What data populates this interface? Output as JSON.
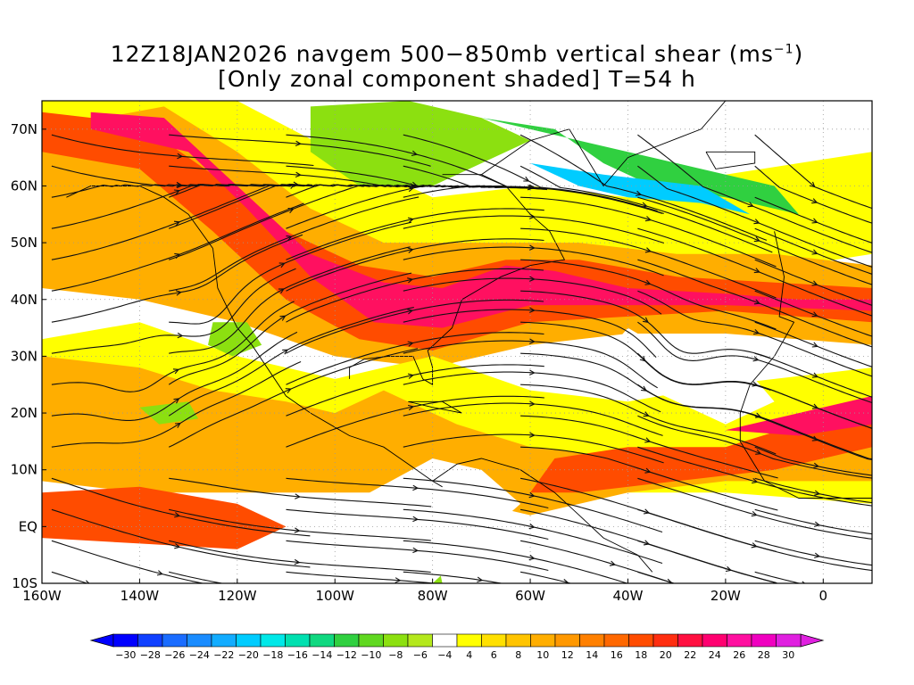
{
  "title": {
    "line1": "12Z18JAN2026 navgem 500−850mb vertical shear (ms",
    "line1_sup": "−1",
    "line1_end": ")",
    "line2": "[Only zonal component shaded] T=54 h"
  },
  "axes": {
    "lat_labels": [
      "70N",
      "60N",
      "50N",
      "40N",
      "30N",
      "20N",
      "10N",
      "EQ",
      "10S"
    ],
    "lat_values": [
      70,
      60,
      50,
      40,
      30,
      20,
      10,
      0,
      -10
    ],
    "lon_labels": [
      "160W",
      "140W",
      "120W",
      "100W",
      "80W",
      "60W",
      "40W",
      "20W",
      "0"
    ],
    "lon_values": [
      -160,
      -140,
      -120,
      -100,
      -80,
      -60,
      -40,
      -20,
      0
    ],
    "lon_range": [
      -160,
      10
    ],
    "lat_range": [
      -10,
      75
    ],
    "grid": "dotted"
  },
  "colorbar": {
    "labels": [
      "−30",
      "−28",
      "−26",
      "−24",
      "−22",
      "−20",
      "−18",
      "−16",
      "−14",
      "−12",
      "−10",
      "−8",
      "−6",
      "−4",
      "4",
      "6",
      "8",
      "10",
      "12",
      "14",
      "16",
      "18",
      "20",
      "22",
      "24",
      "26",
      "28",
      "30"
    ],
    "colors": [
      "#0000ff",
      "#1040ff",
      "#1a6cff",
      "#1a8cff",
      "#12acff",
      "#00ccff",
      "#00e8e8",
      "#00e0b0",
      "#10d880",
      "#30d040",
      "#60d820",
      "#8ce010",
      "#b4e81c",
      "#ffffff",
      "#ffff00",
      "#ffe000",
      "#ffc400",
      "#ffae00",
      "#ff9800",
      "#ff8000",
      "#ff6800",
      "#ff4c00",
      "#ff2e10",
      "#ff1040",
      "#ff0070",
      "#ff10a0",
      "#f000c0",
      "#e020e0"
    ],
    "low_end_color": "#0000ff",
    "high_end_color": "#e020e0"
  },
  "field": {
    "description": "zonal vertical shear shading with streamlines",
    "dominant_colors": {
      "jet_core": "#ff1060",
      "jet_mid": "#ff4c00",
      "jet_edge": "#ffae00",
      "weak_positive": "#ffff00",
      "neutral": "#ffffff",
      "weak_negative": "#8ce010",
      "negative": "#30d040",
      "strong_negative": "#00ccff"
    }
  }
}
